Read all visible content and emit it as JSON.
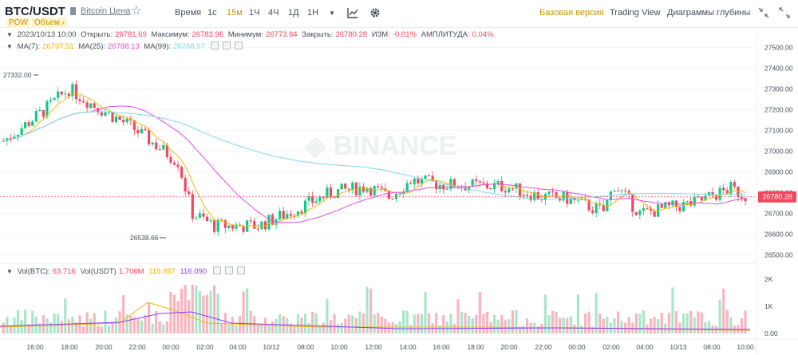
{
  "header": {
    "symbol": "BTC/USDT",
    "price_link": "Bitcoin Цена",
    "tags": [
      "POW",
      "Объем ›"
    ],
    "timeframes": {
      "time_label": "Время",
      "items": [
        "1с",
        "15м",
        "1Ч",
        "4Ч",
        "1Д",
        "1Н"
      ],
      "active": "15м"
    },
    "right_menu": [
      "Базовая версия",
      "Trading View",
      "Диаграммы глубины"
    ],
    "right_active": "Базовая версия"
  },
  "ohlc": {
    "date": "2023/10/13 10:00",
    "open_label": "Открыть:",
    "open": "26781.69",
    "high_label": "Максимум:",
    "high": "26783.96",
    "low_label": "Минимум:",
    "low": "26773.84",
    "close_label": "Закрыть:",
    "close": "26780.28",
    "change_label": "ИЗМ:",
    "change": "-0.01%",
    "amp_label": "АМПЛИТУДА:",
    "amp": "0.04%"
  },
  "ma": {
    "ma7_label": "MA(7):",
    "ma7": "26797.51",
    "ma25_label": "MA(25):",
    "ma25": "26788.13",
    "ma99_label": "MA(99):",
    "ma99": "26768.97"
  },
  "vol": {
    "btc_label": "Vol(BTC):",
    "btc": "63.716",
    "usdt_label": "Vol(USDT)",
    "usdt": "1.706M",
    "v1": "118.887",
    "v2": "116.090"
  },
  "chart_data": {
    "type": "candlestick",
    "watermark": "BINANCE",
    "price_axis": [
      "27500.00",
      "27400.00",
      "27300.00",
      "27200.00",
      "27100.00",
      "27000.00",
      "26900.00",
      "26800.00",
      "26700.00",
      "26600.00",
      "26500.00"
    ],
    "price_range": [
      26460,
      27560
    ],
    "volume_axis": [
      "2K",
      "1K",
      "0.00"
    ],
    "time_axis": [
      "16:00",
      "18:00",
      "20:00",
      "22:00",
      "00:00",
      "02:00",
      "04:00",
      "10/12",
      "08:00",
      "10:00",
      "12:00",
      "14:00",
      "16:00",
      "18:00",
      "20:00",
      "22:00",
      "00:00",
      "02:00",
      "04:00",
      "10/13",
      "08:00",
      "10:00"
    ],
    "last_price": "26780.28",
    "high_marker": "27332.00",
    "low_marker": "26538.66",
    "colors": {
      "up": "#0ecb81",
      "down": "#f6465d",
      "ma7": "#f0b90b",
      "ma25": "#e04ee6",
      "ma99": "#7fd8e6",
      "vol_ma1": "#f0b90b",
      "vol_ma2": "#8a3ffc"
    }
  }
}
